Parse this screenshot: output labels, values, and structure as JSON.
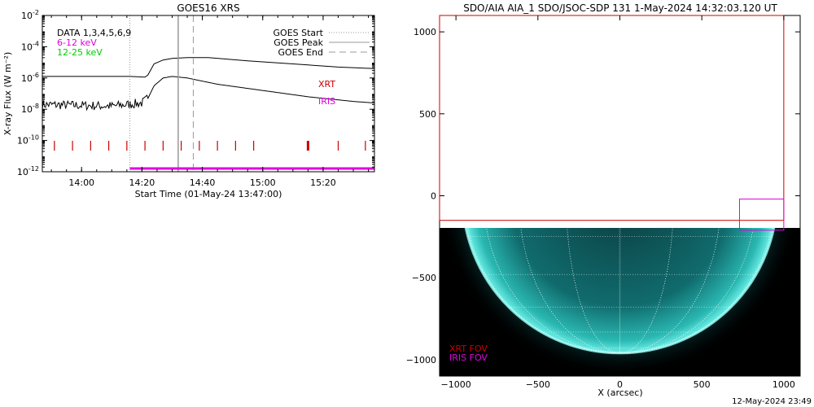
{
  "footer_timestamp": "12-May-2024 23:49",
  "colors": {
    "xrt": "#cc0000",
    "iris": "#e000e0",
    "band_6_12": "#e000e0",
    "band_12_25": "#00cc00",
    "guide": "#999999",
    "aia_disk": "#39d6cf"
  },
  "chart_data": [
    {
      "type": "line",
      "title": "GOES16 XRS",
      "xlabel": "Start Time (01-May-24 13:47:00)",
      "ylabel": "X-ray Flux (W m⁻²)",
      "y_scale": "log",
      "ylim_exp": [
        -12,
        -2
      ],
      "x_time_range": [
        "13:47",
        "15:37"
      ],
      "x_ticks": [
        "14:00",
        "14:20",
        "14:40",
        "15:00",
        "15:20"
      ],
      "y_tick_exponents": [
        -2,
        -4,
        -6,
        -8,
        -10,
        -12
      ],
      "legend_left": [
        {
          "label": "DATA 1,3,4,5,6,9",
          "color": "#000000"
        },
        {
          "label": "6-12 keV",
          "color": "#e000e0"
        },
        {
          "label": "12-25 keV",
          "color": "#00cc00"
        }
      ],
      "legend_right": [
        {
          "label": "GOES Start",
          "style": "dotted"
        },
        {
          "label": "GOES Peak",
          "style": "solid"
        },
        {
          "label": "GOES End",
          "style": "dashed"
        }
      ],
      "markers": {
        "goes_start": "14:16",
        "goes_peak": "14:32",
        "goes_end": "14:37"
      },
      "series": [
        {
          "color": "#000000",
          "x": [
            "13:47",
            "14:16",
            "14:21",
            "14:22",
            "14:24",
            "14:27",
            "14:30",
            "14:35",
            "14:42",
            "14:55",
            "15:10",
            "15:25",
            "15:37"
          ],
          "log10_flux": [
            -5.9,
            -5.9,
            -5.95,
            -5.8,
            -5.1,
            -4.85,
            -4.75,
            -4.7,
            -4.7,
            -4.9,
            -5.1,
            -5.3,
            -5.4
          ]
        },
        {
          "color": "#000000",
          "style": "noisy",
          "x": [
            "13:47",
            "14:10",
            "14:20",
            "14:22",
            "14:24",
            "14:27",
            "14:30",
            "14:35",
            "14:45",
            "15:00",
            "15:15",
            "15:30",
            "15:37"
          ],
          "log10_flux": [
            -7.7,
            -7.8,
            -7.6,
            -7.3,
            -6.5,
            -6.0,
            -5.9,
            -6.0,
            -6.4,
            -6.8,
            -7.2,
            -7.5,
            -7.6
          ]
        }
      ],
      "annotations": [
        {
          "text": "XRT",
          "color": "#cc0000"
        },
        {
          "text": "IRIS",
          "color": "#e000e0"
        }
      ],
      "xrt_ticks": [
        "13:51",
        "13:57",
        "14:03",
        "14:09",
        "14:15",
        "14:21",
        "14:27",
        "14:33",
        "14:39",
        "14:45",
        "14:51",
        "14:57",
        "15:15",
        "15:25",
        "15:34"
      ],
      "iris_coverage": [
        "14:16",
        "15:37"
      ]
    },
    {
      "type": "image",
      "title": "SDO/AIA AIA_1 SDO/JSOC-SDP 131  1-May-2024 14:32:03.120 UT",
      "xlabel": "X (arcsec)",
      "ylabel": "",
      "xlim": [
        -1100,
        1100
      ],
      "ylim": [
        -1100,
        1100
      ],
      "x_ticks": [
        -1000,
        -500,
        0,
        500,
        1000
      ],
      "y_ticks": [
        1000,
        500,
        0,
        -500,
        -1000
      ],
      "xrt_fov": {
        "x": [
          -1100,
          1000
        ],
        "y": [
          -150,
          1100
        ]
      },
      "iris_fov": {
        "x": [
          730,
          1000
        ],
        "y": [
          -210,
          -20
        ]
      },
      "legend": [
        {
          "label": "XRT FOV",
          "color": "#cc0000"
        },
        {
          "label": "IRIS FOV",
          "color": "#e000e0"
        }
      ]
    }
  ]
}
